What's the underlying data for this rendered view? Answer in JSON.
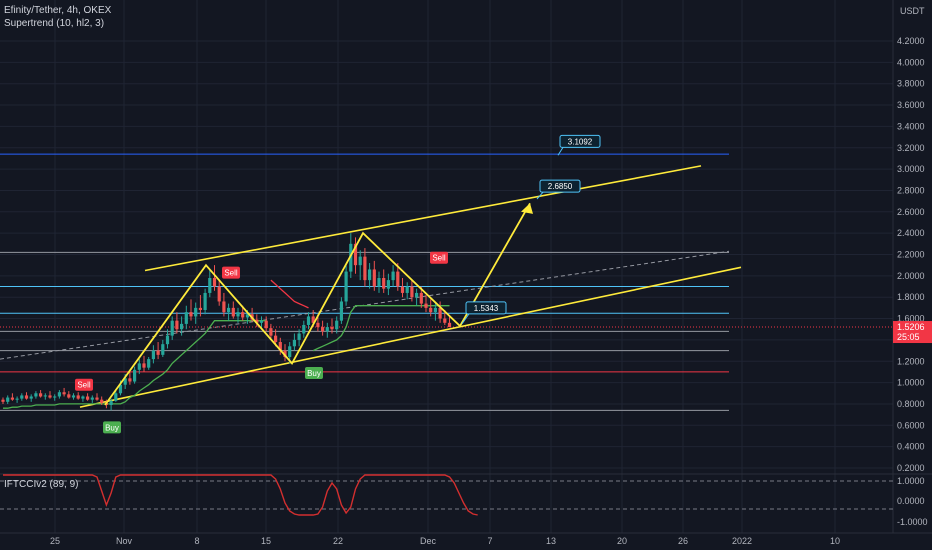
{
  "symbol": {
    "name": "Efinity/Tether",
    "interval": "4h",
    "exchange": "OKEX",
    "indicator": "Supertrend (10, hl2, 3)"
  },
  "currency": "USDT",
  "price_badge": {
    "value": "1.5206",
    "countdown": "25:05"
  },
  "oscillator": {
    "label": "IFTCCIv2 (89, 9)"
  },
  "colors": {
    "background": "#131722",
    "grid": "#1f2433",
    "up_candle": "#26a69a",
    "down_candle": "#ef5350",
    "supertrend_up": "#4caf50",
    "supertrend_down": "#f23645",
    "pattern": "#ffeb3b",
    "hline_blue": "#2962ff",
    "hline_cyan": "#4fc3f7",
    "hline_red": "#f23645",
    "oscillator_line": "#d32f2f",
    "price_badge": "#f23645"
  },
  "chart_data": {
    "type": "candlestick",
    "y_axis": {
      "range": [
        0.2,
        4.5
      ],
      "ticks": [
        "4.2000",
        "4.0000",
        "3.8000",
        "3.6000",
        "3.4000",
        "3.2000",
        "3.0000",
        "2.8000",
        "2.6000",
        "2.4000",
        "2.2000",
        "2.0000",
        "1.8000",
        "1.6000",
        "1.4000",
        "1.2000",
        "1.0000",
        "0.8000",
        "0.6000",
        "0.4000",
        "0.2000"
      ],
      "unit": "USDT"
    },
    "x_axis": {
      "ticks": [
        "25",
        "Nov",
        "8",
        "15",
        "22",
        "Dec",
        "7",
        "13",
        "20",
        "26",
        "2022",
        "10"
      ]
    },
    "ohlc": [
      [
        0.84,
        0.86,
        0.8,
        0.82
      ],
      [
        0.82,
        0.88,
        0.8,
        0.86
      ],
      [
        0.86,
        0.9,
        0.83,
        0.84
      ],
      [
        0.84,
        0.87,
        0.81,
        0.85
      ],
      [
        0.85,
        0.9,
        0.83,
        0.88
      ],
      [
        0.88,
        0.91,
        0.84,
        0.85
      ],
      [
        0.85,
        0.89,
        0.82,
        0.87
      ],
      [
        0.87,
        0.92,
        0.85,
        0.9
      ],
      [
        0.9,
        0.93,
        0.86,
        0.87
      ],
      [
        0.87,
        0.9,
        0.84,
        0.88
      ],
      [
        0.88,
        0.92,
        0.85,
        0.86
      ],
      [
        0.86,
        0.89,
        0.83,
        0.87
      ],
      [
        0.87,
        0.93,
        0.85,
        0.91
      ],
      [
        0.91,
        0.95,
        0.87,
        0.89
      ],
      [
        0.89,
        0.92,
        0.85,
        0.86
      ],
      [
        0.86,
        0.9,
        0.84,
        0.88
      ],
      [
        0.88,
        0.91,
        0.84,
        0.85
      ],
      [
        0.85,
        0.88,
        0.82,
        0.87
      ],
      [
        0.87,
        0.9,
        0.83,
        0.84
      ],
      [
        0.84,
        0.88,
        0.81,
        0.86
      ],
      [
        0.86,
        0.9,
        0.83,
        0.84
      ],
      [
        0.84,
        0.87,
        0.79,
        0.81
      ],
      [
        0.81,
        0.84,
        0.76,
        0.79
      ],
      [
        0.79,
        0.85,
        0.74,
        0.83
      ],
      [
        0.83,
        0.92,
        0.82,
        0.9
      ],
      [
        0.9,
        1.02,
        0.88,
        0.98
      ],
      [
        0.98,
        1.08,
        0.94,
        1.04
      ],
      [
        1.04,
        1.1,
        0.98,
        1.01
      ],
      [
        1.01,
        1.15,
        0.99,
        1.12
      ],
      [
        1.12,
        1.22,
        1.08,
        1.18
      ],
      [
        1.18,
        1.25,
        1.1,
        1.14
      ],
      [
        1.14,
        1.24,
        1.12,
        1.22
      ],
      [
        1.22,
        1.35,
        1.18,
        1.3
      ],
      [
        1.3,
        1.38,
        1.22,
        1.26
      ],
      [
        1.26,
        1.4,
        1.24,
        1.36
      ],
      [
        1.36,
        1.5,
        1.32,
        1.44
      ],
      [
        1.44,
        1.62,
        1.4,
        1.58
      ],
      [
        1.58,
        1.66,
        1.46,
        1.5
      ],
      [
        1.5,
        1.62,
        1.44,
        1.55
      ],
      [
        1.55,
        1.72,
        1.5,
        1.66
      ],
      [
        1.66,
        1.78,
        1.58,
        1.62
      ],
      [
        1.62,
        1.75,
        1.55,
        1.7
      ],
      [
        1.7,
        1.82,
        1.62,
        1.68
      ],
      [
        1.68,
        1.88,
        1.64,
        1.84
      ],
      [
        1.84,
        2.06,
        1.8,
        1.98
      ],
      [
        1.98,
        2.1,
        1.86,
        1.9
      ],
      [
        1.9,
        1.96,
        1.72,
        1.76
      ],
      [
        1.76,
        1.84,
        1.62,
        1.66
      ],
      [
        1.66,
        1.74,
        1.58,
        1.7
      ],
      [
        1.7,
        1.76,
        1.6,
        1.62
      ],
      [
        1.62,
        1.7,
        1.56,
        1.66
      ],
      [
        1.66,
        1.72,
        1.58,
        1.61
      ],
      [
        1.61,
        1.68,
        1.55,
        1.64
      ],
      [
        1.64,
        1.7,
        1.57,
        1.59
      ],
      [
        1.59,
        1.64,
        1.52,
        1.56
      ],
      [
        1.56,
        1.62,
        1.5,
        1.58
      ],
      [
        1.58,
        1.62,
        1.48,
        1.51
      ],
      [
        1.51,
        1.55,
        1.4,
        1.44
      ],
      [
        1.44,
        1.5,
        1.34,
        1.38
      ],
      [
        1.38,
        1.42,
        1.26,
        1.3
      ],
      [
        1.3,
        1.36,
        1.2,
        1.24
      ],
      [
        1.24,
        1.38,
        1.18,
        1.34
      ],
      [
        1.34,
        1.46,
        1.3,
        1.4
      ],
      [
        1.4,
        1.5,
        1.34,
        1.46
      ],
      [
        1.46,
        1.58,
        1.42,
        1.54
      ],
      [
        1.54,
        1.66,
        1.5,
        1.62
      ],
      [
        1.62,
        1.68,
        1.52,
        1.56
      ],
      [
        1.56,
        1.64,
        1.48,
        1.52
      ],
      [
        1.52,
        1.58,
        1.44,
        1.48
      ],
      [
        1.48,
        1.56,
        1.42,
        1.52
      ],
      [
        1.52,
        1.6,
        1.46,
        1.5
      ],
      [
        1.5,
        1.62,
        1.46,
        1.58
      ],
      [
        1.58,
        1.8,
        1.55,
        1.76
      ],
      [
        1.76,
        2.1,
        1.72,
        2.04
      ],
      [
        2.04,
        2.4,
        1.98,
        2.3
      ],
      [
        2.3,
        2.36,
        2.02,
        2.1
      ],
      [
        2.1,
        2.24,
        1.96,
        2.18
      ],
      [
        2.18,
        2.26,
        1.9,
        1.96
      ],
      [
        1.96,
        2.12,
        1.88,
        2.06
      ],
      [
        2.06,
        2.14,
        1.86,
        1.9
      ],
      [
        1.9,
        2.04,
        1.84,
        1.98
      ],
      [
        1.98,
        2.06,
        1.84,
        1.88
      ],
      [
        1.88,
        2.02,
        1.82,
        1.96
      ],
      [
        1.96,
        2.1,
        1.9,
        2.04
      ],
      [
        2.04,
        2.12,
        1.86,
        1.9
      ],
      [
        1.9,
        1.98,
        1.8,
        1.84
      ],
      [
        1.84,
        1.94,
        1.78,
        1.9
      ],
      [
        1.9,
        1.96,
        1.76,
        1.8
      ],
      [
        1.8,
        1.88,
        1.72,
        1.84
      ],
      [
        1.84,
        1.9,
        1.7,
        1.74
      ],
      [
        1.74,
        1.82,
        1.66,
        1.7
      ],
      [
        1.7,
        1.78,
        1.62,
        1.66
      ],
      [
        1.66,
        1.74,
        1.58,
        1.7
      ],
      [
        1.7,
        1.76,
        1.56,
        1.6
      ],
      [
        1.6,
        1.68,
        1.54,
        1.56
      ],
      [
        1.56,
        1.62,
        1.52,
        1.5206
      ]
    ],
    "supertrend": [
      {
        "side": "up",
        "values": [
          0.76,
          0.76,
          0.77,
          0.77,
          0.78,
          0.78,
          0.78,
          0.79,
          0.79,
          0.79,
          0.79,
          0.79,
          0.8,
          0.8,
          0.8,
          0.8,
          0.8,
          0.8,
          0.8,
          0.8,
          0.8,
          0.8,
          0.8,
          0.8,
          0.8,
          0.8,
          0.82,
          0.86,
          0.88,
          0.92,
          0.95,
          0.98,
          1.02,
          1.05,
          1.08,
          1.12,
          1.18,
          1.22,
          1.26,
          1.3,
          1.34,
          1.38,
          1.42,
          1.46,
          1.52,
          1.58,
          1.58,
          1.58,
          1.58,
          1.58,
          1.58,
          1.58,
          1.58,
          1.58,
          1.58,
          1.58,
          1.58
        ]
      },
      {
        "side": "down",
        "start": 57,
        "values": [
          1.96,
          1.92,
          1.88,
          1.84,
          1.8,
          1.76,
          1.74,
          1.72,
          1.7
        ]
      },
      {
        "side": "up",
        "start": 66,
        "values": [
          1.3,
          1.32,
          1.34,
          1.36,
          1.38,
          1.4,
          1.44,
          1.52,
          1.66,
          1.72,
          1.72,
          1.72,
          1.72,
          1.72,
          1.72,
          1.72,
          1.72,
          1.72,
          1.72,
          1.72,
          1.72,
          1.72,
          1.72,
          1.72,
          1.72,
          1.72,
          1.72,
          1.72,
          1.72,
          1.72
        ]
      }
    ],
    "horizontal_lines": [
      {
        "price": 3.14,
        "color": "blue"
      },
      {
        "price": 2.22,
        "color": "gray"
      },
      {
        "price": 1.9,
        "color": "cyan"
      },
      {
        "price": 1.65,
        "color": "cyan"
      },
      {
        "price": 1.48,
        "color": "gray"
      },
      {
        "price": 1.3,
        "color": "gray"
      },
      {
        "price": 1.1,
        "color": "red"
      },
      {
        "price": 0.74,
        "color": "gray"
      }
    ],
    "annotations": [
      {
        "type": "label",
        "text": "3.1092"
      },
      {
        "type": "label",
        "text": "2.6850"
      },
      {
        "type": "label",
        "text": "1.5343"
      }
    ],
    "signals": [
      {
        "type": "sell",
        "text": "Sell"
      },
      {
        "type": "buy",
        "text": "Buy"
      },
      {
        "type": "sell",
        "text": "Sell"
      },
      {
        "type": "buy",
        "text": "Buy"
      },
      {
        "type": "sell",
        "text": "Sell"
      }
    ],
    "oscillator": {
      "range": [
        -1.3,
        1.3
      ],
      "ticks": [
        "1.0000",
        "0.0000",
        "-1.0000"
      ],
      "levels": [
        0.7,
        -0.7
      ],
      "values": [
        1,
        1,
        1,
        1,
        1,
        1,
        1,
        1,
        1,
        1,
        1,
        1,
        1,
        1,
        1,
        1,
        1,
        1,
        1,
        1,
        0.9,
        0.2,
        -0.5,
        0.1,
        0.9,
        1,
        1,
        1,
        1,
        1,
        1,
        1,
        1,
        1,
        1,
        1,
        1,
        1,
        1,
        1,
        1,
        1,
        1,
        1,
        1,
        1,
        1,
        1,
        1,
        1,
        1,
        1,
        1,
        1,
        1,
        1,
        1,
        1,
        0.8,
        0.3,
        -0.4,
        -0.8,
        -0.95,
        -1,
        -1,
        -1,
        -1,
        -0.95,
        -0.6,
        0.2,
        0.6,
        0.3,
        -0.5,
        -0.9,
        -0.6,
        0.3,
        0.8,
        1,
        1,
        1,
        1,
        1,
        1,
        1,
        1,
        1,
        1,
        1,
        1,
        1,
        1,
        1,
        1,
        1,
        1,
        0.9,
        0.6,
        0.1,
        -0.4,
        -0.8,
        -0.95,
        -1
      ]
    }
  }
}
